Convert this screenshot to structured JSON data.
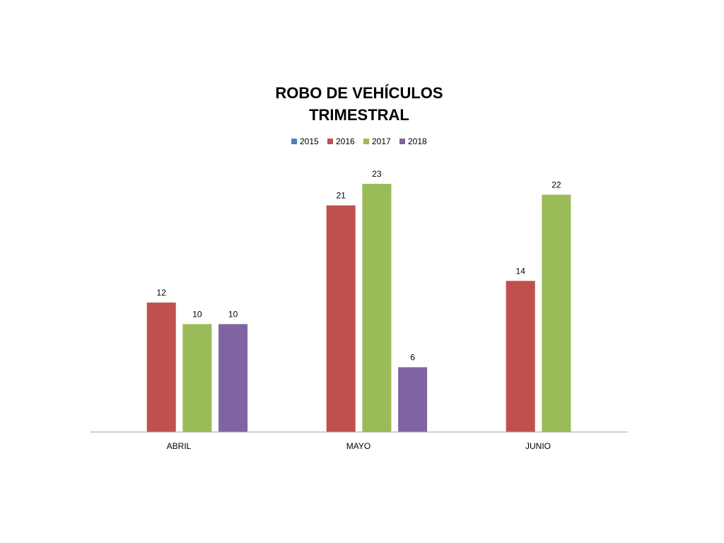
{
  "chart_data": {
    "type": "bar",
    "title_lines": [
      "ROBO DE VEHÍCULOS",
      "TRIMESTRAL"
    ],
    "categories": [
      "ABRIL",
      "MAYO",
      "JUNIO"
    ],
    "series": [
      {
        "name": "2015",
        "color": "#4F81BD",
        "values": [
          null,
          null,
          null
        ]
      },
      {
        "name": "2016",
        "color": "#C0504D",
        "values": [
          12,
          21,
          14
        ]
      },
      {
        "name": "2017",
        "color": "#9BBB59",
        "values": [
          10,
          23,
          22
        ]
      },
      {
        "name": "2018",
        "color": "#8064A2",
        "values": [
          10,
          6,
          null
        ]
      }
    ],
    "ylim": [
      0,
      23
    ],
    "legend_position": "top",
    "grid": false,
    "axis_color": "#A6A6A6"
  }
}
